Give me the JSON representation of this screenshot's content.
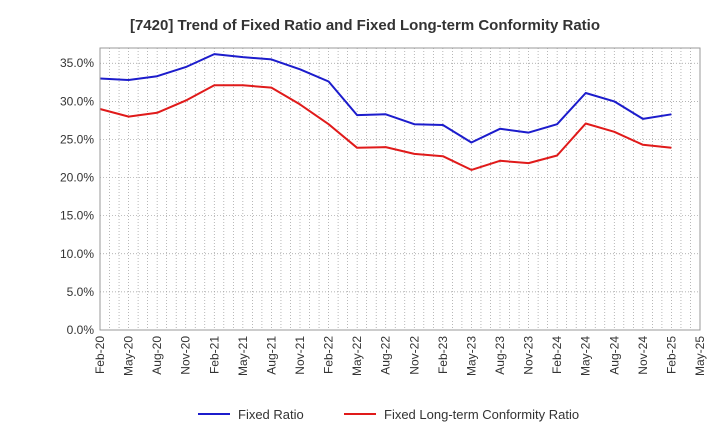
{
  "chart_data": {
    "type": "line",
    "title": "[7420]  Trend of Fixed Ratio and Fixed Long-term Conformity Ratio",
    "xlabel": "",
    "ylabel": "",
    "x_ticks": [
      "Feb-20",
      "May-20",
      "Aug-20",
      "Nov-20",
      "Feb-21",
      "May-21",
      "Aug-21",
      "Nov-21",
      "Feb-22",
      "May-22",
      "Aug-22",
      "Nov-22",
      "Feb-23",
      "May-23",
      "Aug-23",
      "Nov-23",
      "Feb-24",
      "May-24",
      "Aug-24",
      "Nov-24",
      "Feb-25",
      "May-25"
    ],
    "y_ticks": [
      "0.0%",
      "5.0%",
      "10.0%",
      "15.0%",
      "20.0%",
      "25.0%",
      "30.0%",
      "35.0%"
    ],
    "ylim": [
      0,
      37
    ],
    "grid": true,
    "legend_position": "bottom",
    "x": [
      "Feb-20",
      "May-20",
      "Aug-20",
      "Nov-20",
      "Feb-21",
      "May-21",
      "Aug-21",
      "Nov-21",
      "Feb-22",
      "May-22",
      "Aug-22",
      "Nov-22",
      "Feb-23",
      "May-23",
      "Aug-23",
      "Nov-23",
      "Feb-24",
      "May-24",
      "Aug-24",
      "Nov-24",
      "Feb-25"
    ],
    "series": [
      {
        "name": "Fixed Ratio",
        "color": "#1c1ccc",
        "values": [
          33.0,
          32.8,
          33.3,
          34.5,
          36.2,
          35.8,
          35.5,
          34.2,
          32.6,
          28.2,
          28.3,
          27.0,
          26.9,
          24.6,
          26.4,
          25.9,
          27.0,
          31.1,
          30.0,
          27.7,
          28.3
        ]
      },
      {
        "name": "Fixed Long-term Conformity Ratio",
        "color": "#e01a1a",
        "values": [
          29.0,
          28.0,
          28.5,
          30.1,
          32.1,
          32.1,
          31.8,
          29.6,
          27.0,
          23.9,
          24.0,
          23.1,
          22.8,
          21.0,
          22.2,
          21.9,
          22.9,
          27.1,
          26.0,
          24.3,
          23.9
        ]
      }
    ]
  }
}
